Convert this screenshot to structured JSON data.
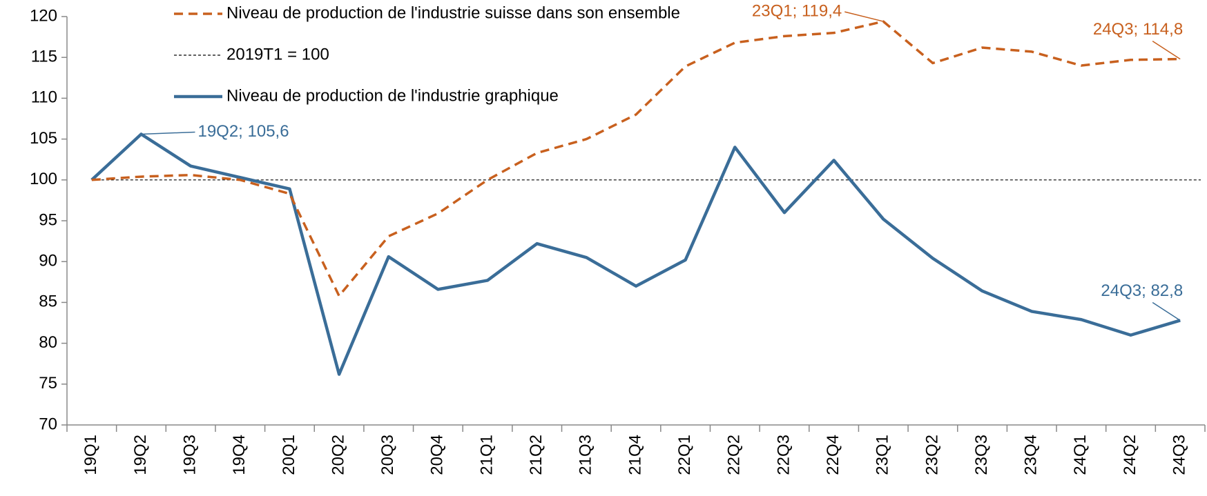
{
  "chart_data": {
    "type": "line",
    "categories": [
      "19Q1",
      "19Q2",
      "19Q3",
      "19Q4",
      "20Q1",
      "20Q2",
      "20Q3",
      "20Q4",
      "21Q1",
      "21Q2",
      "21Q3",
      "21Q4",
      "22Q1",
      "22Q2",
      "22Q3",
      "22Q4",
      "23Q1",
      "23Q2",
      "23Q3",
      "23Q4",
      "24Q1",
      "24Q2",
      "24Q3"
    ],
    "series": [
      {
        "name": "Niveau de production de l'industrie suisse dans son ensemble",
        "color": "#c8601e",
        "dashed": true,
        "values": [
          100,
          100.4,
          100.6,
          100,
          98.3,
          85.8,
          93.1,
          95.9,
          100,
          103.3,
          105.0,
          108.0,
          113.9,
          116.8,
          117.6,
          118.0,
          119.4,
          114.3,
          116.2,
          115.7,
          114.0,
          114.7,
          114.8
        ],
        "value_labels": [
          null,
          null,
          null,
          null,
          null,
          null,
          null,
          null,
          null,
          null,
          null,
          null,
          null,
          null,
          null,
          null,
          "23Q1; 119,4",
          null,
          null,
          null,
          null,
          null,
          "24Q3; 114,8"
        ]
      },
      {
        "name": "Niveau de production de l'industrie graphique",
        "color": "#3a6d98",
        "dashed": false,
        "values": [
          100,
          105.6,
          101.7,
          100.3,
          98.9,
          76.2,
          90.6,
          86.6,
          87.7,
          92.2,
          90.5,
          87.0,
          90.2,
          104.0,
          96.0,
          102.4,
          95.2,
          90.4,
          86.4,
          83.9,
          82.9,
          81.0,
          82.8
        ],
        "value_labels": [
          null,
          "19Q2; 105,6",
          null,
          null,
          null,
          null,
          null,
          null,
          null,
          null,
          null,
          null,
          null,
          null,
          null,
          null,
          null,
          null,
          null,
          null,
          null,
          null,
          "24Q3; 82,8"
        ]
      }
    ],
    "reference": {
      "label": "2019T1 = 100",
      "value": 100,
      "color": "#000000"
    },
    "ylim": [
      70,
      120
    ],
    "yticks": [
      70,
      75,
      80,
      85,
      90,
      95,
      100,
      105,
      110,
      115,
      120
    ],
    "grid": false
  }
}
